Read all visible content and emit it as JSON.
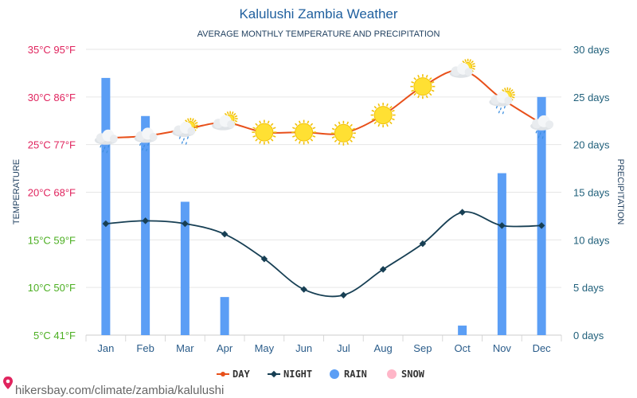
{
  "chart_data": {
    "type": "line+bar",
    "title": "Kalulushi Zambia Weather",
    "subtitle": "AVERAGE MONTHLY TEMPERATURE AND PRECIPITATION",
    "months": [
      "Jan",
      "Feb",
      "Mar",
      "Apr",
      "May",
      "Jun",
      "Jul",
      "Aug",
      "Sep",
      "Oct",
      "Nov",
      "Dec"
    ],
    "left_axis": {
      "title": "TEMPERATURE",
      "ticks": [
        {
          "value": 35,
          "label": "35°C 95°F",
          "color": "#e0245e"
        },
        {
          "value": 30,
          "label": "30°C 86°F",
          "color": "#e0245e"
        },
        {
          "value": 25,
          "label": "25°C 77°F",
          "color": "#e0245e"
        },
        {
          "value": 20,
          "label": "20°C 68°F",
          "color": "#e0245e"
        },
        {
          "value": 15,
          "label": "15°C 59°F",
          "color": "#4caf22"
        },
        {
          "value": 10,
          "label": "10°C 50°F",
          "color": "#4caf22"
        },
        {
          "value": 5,
          "label": "5°C 41°F",
          "color": "#4caf22"
        }
      ],
      "ylim": [
        5,
        35
      ]
    },
    "right_axis": {
      "title": "PRECIPITATION",
      "ticks": [
        {
          "value": 30,
          "label": "30 days"
        },
        {
          "value": 25,
          "label": "25 days"
        },
        {
          "value": 20,
          "label": "20 days"
        },
        {
          "value": 15,
          "label": "15 days"
        },
        {
          "value": 10,
          "label": "10 days"
        },
        {
          "value": 5,
          "label": "5 days"
        },
        {
          "value": 0,
          "label": "0 days"
        }
      ],
      "ylim": [
        0,
        30
      ]
    },
    "series": [
      {
        "name": "DAY",
        "type": "line",
        "color": "#e8501a",
        "values": [
          25.7,
          25.9,
          26.6,
          27.3,
          26.3,
          26.3,
          26.2,
          28.1,
          31.1,
          32.8,
          29.8,
          27.2
        ]
      },
      {
        "name": "NIGHT",
        "type": "line",
        "color": "#173f54",
        "values": [
          16.7,
          17.0,
          16.7,
          15.6,
          13.0,
          9.8,
          9.2,
          11.9,
          14.6,
          17.9,
          16.5,
          16.5
        ]
      },
      {
        "name": "RAIN",
        "type": "bar",
        "color": "#5b9ef5",
        "values": [
          27,
          23,
          14,
          4,
          0,
          0,
          0,
          0,
          0,
          1,
          17,
          25
        ]
      },
      {
        "name": "SNOW",
        "type": "bar",
        "color": "#ffb6c8",
        "values": [
          0,
          0,
          0,
          0,
          0,
          0,
          0,
          0,
          0,
          0,
          0,
          0
        ]
      }
    ],
    "weather_icons": [
      "cloud-rain-icon",
      "cloud-rain-icon",
      "cloud-sun-rain-icon",
      "cloud-sun-icon",
      "sun-icon",
      "sun-icon",
      "sun-icon",
      "sun-icon",
      "sun-icon",
      "cloud-sun-icon",
      "cloud-sun-rain-icon",
      "cloud-rain-icon"
    ],
    "legend": [
      {
        "label": "DAY",
        "color": "#e8501a",
        "marker": "line-dot"
      },
      {
        "label": "NIGHT",
        "color": "#173f54",
        "marker": "line-diamond"
      },
      {
        "label": "RAIN",
        "color": "#5b9ef5",
        "marker": "circle"
      },
      {
        "label": "SNOW",
        "color": "#ffb6c8",
        "marker": "circle"
      }
    ]
  },
  "footer": {
    "url": "hikersbay.com/climate/zambia/kalulushi",
    "icon": "map-pin-icon",
    "icon_color": "#e0245e"
  }
}
